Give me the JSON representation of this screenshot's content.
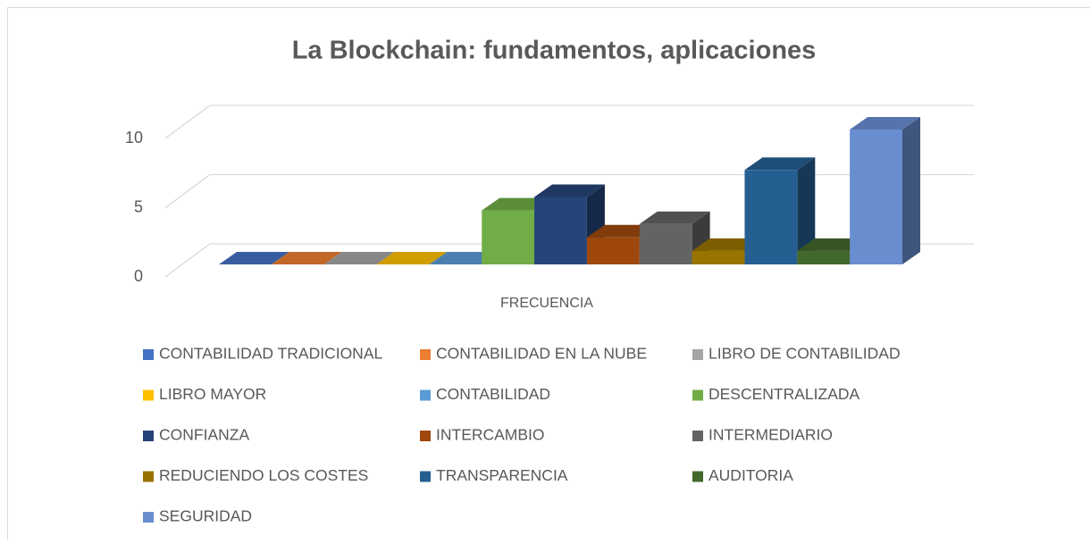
{
  "chart_data": {
    "type": "bar3d",
    "title": "La Blockchain: fundamentos, aplicaciones",
    "categories": [
      "FRECUENCIA"
    ],
    "ylim": [
      0,
      10
    ],
    "yticks": [
      0,
      5,
      10
    ],
    "grid": true,
    "legend": "bottom",
    "series": [
      {
        "name": "CONTABILIDAD TRADICIONAL",
        "color": "#4472C4",
        "values": [
          0
        ]
      },
      {
        "name": "CONTABILIDAD EN LA NUBE",
        "color": "#ED7D31",
        "values": [
          0
        ]
      },
      {
        "name": "LIBRO DE CONTABILIDAD",
        "color": "#A5A5A5",
        "values": [
          0
        ]
      },
      {
        "name": "LIBRO MAYOR",
        "color": "#FFC000",
        "values": [
          0
        ]
      },
      {
        "name": "CONTABILIDAD",
        "color": "#5B9BD5",
        "values": [
          0
        ]
      },
      {
        "name": "DESCENTRALIZADA",
        "color": "#70AD47",
        "values": [
          4
        ]
      },
      {
        "name": "CONFIANZA",
        "color": "#264478",
        "values": [
          5
        ]
      },
      {
        "name": "INTERCAMBIO",
        "color": "#9E480E",
        "values": [
          2
        ]
      },
      {
        "name": "INTERMEDIARIO",
        "color": "#636363",
        "values": [
          3
        ]
      },
      {
        "name": "REDUCIENDO LOS COSTES",
        "color": "#997300",
        "values": [
          1
        ]
      },
      {
        "name": "TRANSPARENCIA",
        "color": "#255E91",
        "values": [
          7
        ]
      },
      {
        "name": "AUDITORIA",
        "color": "#43682B",
        "values": [
          1
        ]
      },
      {
        "name": "SEGURIDAD",
        "color": "#698ED0",
        "values": [
          10
        ]
      }
    ]
  }
}
